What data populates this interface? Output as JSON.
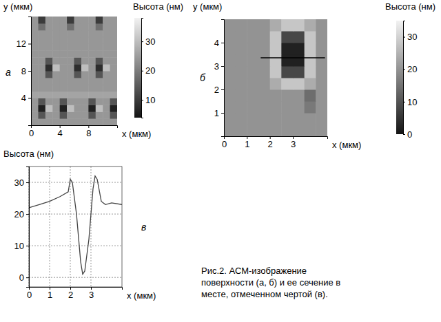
{
  "chart_data": [
    {
      "type": "heatmap",
      "panel": "а",
      "x": [
        0.5,
        1.5,
        2.5,
        3.5,
        4.5,
        5.5,
        6.5,
        7.5,
        8.5,
        9.5,
        10.5,
        11.5
      ],
      "y": [
        0.5,
        1.5,
        2.5,
        3.5,
        4.5,
        5.5,
        6.5,
        7.5,
        8.5,
        9.5,
        10.5,
        11.5,
        12.5,
        13.5,
        14.5,
        15.5
      ],
      "z": [
        [
          24,
          24,
          24,
          24,
          24,
          24,
          24,
          24,
          24,
          24,
          24,
          24
        ],
        [
          24,
          14,
          24,
          24,
          14,
          24,
          24,
          24,
          14,
          24,
          24,
          14
        ],
        [
          24,
          6,
          30,
          24,
          6,
          30,
          24,
          24,
          6,
          30,
          24,
          6
        ],
        [
          24,
          14,
          24,
          24,
          14,
          24,
          24,
          24,
          14,
          24,
          24,
          14
        ],
        [
          26,
          26,
          26,
          26,
          26,
          26,
          26,
          26,
          26,
          26,
          26,
          26
        ],
        [
          24,
          24,
          24,
          24,
          24,
          24,
          24,
          24,
          24,
          24,
          24,
          24
        ],
        [
          24,
          24,
          24,
          24,
          24,
          24,
          24,
          24,
          24,
          24,
          24,
          24
        ],
        [
          24,
          24,
          14,
          24,
          24,
          24,
          14,
          24,
          24,
          14,
          24,
          24
        ],
        [
          24,
          24,
          8,
          30,
          24,
          24,
          8,
          30,
          24,
          8,
          30,
          24
        ],
        [
          24,
          24,
          14,
          24,
          24,
          24,
          14,
          24,
          24,
          14,
          24,
          24
        ],
        [
          24,
          24,
          24,
          24,
          24,
          24,
          24,
          24,
          24,
          24,
          24,
          24
        ],
        [
          24,
          24,
          24,
          24,
          24,
          24,
          24,
          24,
          24,
          24,
          24,
          24
        ],
        [
          24,
          24,
          24,
          24,
          24,
          24,
          24,
          24,
          24,
          24,
          24,
          24
        ],
        [
          24,
          24,
          24,
          24,
          24,
          24,
          24,
          24,
          24,
          24,
          24,
          24
        ],
        [
          24,
          18,
          24,
          24,
          24,
          18,
          24,
          24,
          24,
          18,
          24,
          24
        ],
        [
          24,
          10,
          24,
          24,
          24,
          10,
          24,
          24,
          24,
          10,
          24,
          24
        ]
      ],
      "xlim": [
        0,
        12
      ],
      "ylim": [
        0,
        16
      ],
      "xticks": [
        0,
        4,
        8
      ],
      "yticks": [
        4,
        8,
        12
      ],
      "x_label": "x (мкм)",
      "y_label": "y (мкм)",
      "colorbar": {
        "label": "Высота (нм)",
        "range": [
          4,
          38
        ],
        "ticks": [
          10,
          20,
          30
        ]
      }
    },
    {
      "type": "heatmap",
      "panel": "б",
      "x": [
        0.25,
        0.75,
        1.25,
        1.75,
        2.25,
        2.75,
        3.25,
        3.75,
        4.25
      ],
      "y": [
        0.25,
        0.75,
        1.25,
        1.75,
        2.25,
        2.75,
        3.25,
        3.75,
        4.25,
        4.75
      ],
      "z": [
        [
          20,
          20,
          20,
          20,
          20,
          20,
          20,
          20,
          20
        ],
        [
          20,
          20,
          20,
          20,
          20,
          20,
          20,
          20,
          20
        ],
        [
          20,
          20,
          20,
          20,
          20,
          20,
          20,
          16,
          20
        ],
        [
          20,
          20,
          20,
          20,
          20,
          20,
          20,
          14,
          20
        ],
        [
          20,
          20,
          20,
          20,
          24,
          28,
          28,
          24,
          20
        ],
        [
          20,
          20,
          20,
          20,
          28,
          8,
          8,
          28,
          20
        ],
        [
          20,
          20,
          20,
          20,
          28,
          2,
          2,
          28,
          20
        ],
        [
          20,
          20,
          20,
          20,
          28,
          2,
          2,
          28,
          20
        ],
        [
          20,
          20,
          20,
          20,
          28,
          8,
          8,
          28,
          20
        ],
        [
          20,
          20,
          20,
          20,
          24,
          28,
          28,
          24,
          20
        ]
      ],
      "xlim": [
        0,
        4.5
      ],
      "ylim": [
        0,
        5
      ],
      "xticks": [
        0,
        1,
        2,
        3
      ],
      "yticks": [
        1,
        2,
        3,
        4
      ],
      "x_label": "x (мкм)",
      "y_label": "y (мкм)",
      "section": {
        "y": 3.35,
        "x": [
          1.6,
          4.4
        ]
      },
      "colorbar": {
        "label": "Высота (нм)",
        "range": [
          0,
          35
        ],
        "ticks": [
          0,
          10,
          20,
          30
        ]
      }
    },
    {
      "type": "line",
      "panel": "в",
      "x": [
        0,
        0.5,
        1,
        1.5,
        1.9,
        2.0,
        2.1,
        2.3,
        2.5,
        2.6,
        2.7,
        2.9,
        3.1,
        3.2,
        3.3,
        3.5,
        3.7,
        4.0,
        4.5
      ],
      "values": [
        22,
        23,
        24,
        25.5,
        27,
        31,
        30,
        20,
        5,
        1,
        2,
        12,
        28,
        32,
        31,
        24,
        23,
        23.5,
        23
      ],
      "xlim": [
        0,
        4.5
      ],
      "ylim": [
        -3,
        35
      ],
      "xticks": [
        0,
        1,
        2,
        3
      ],
      "yticks": [
        0,
        10,
        20,
        30
      ],
      "x_label": "x (мкм)",
      "y_label": "Высота (нм)",
      "grid": true,
      "color": "#444444"
    }
  ],
  "caption": "Рис.2. АСМ-изображение поверхности (а, б) и ее сечение в месте, отмеченном чертой (в)."
}
